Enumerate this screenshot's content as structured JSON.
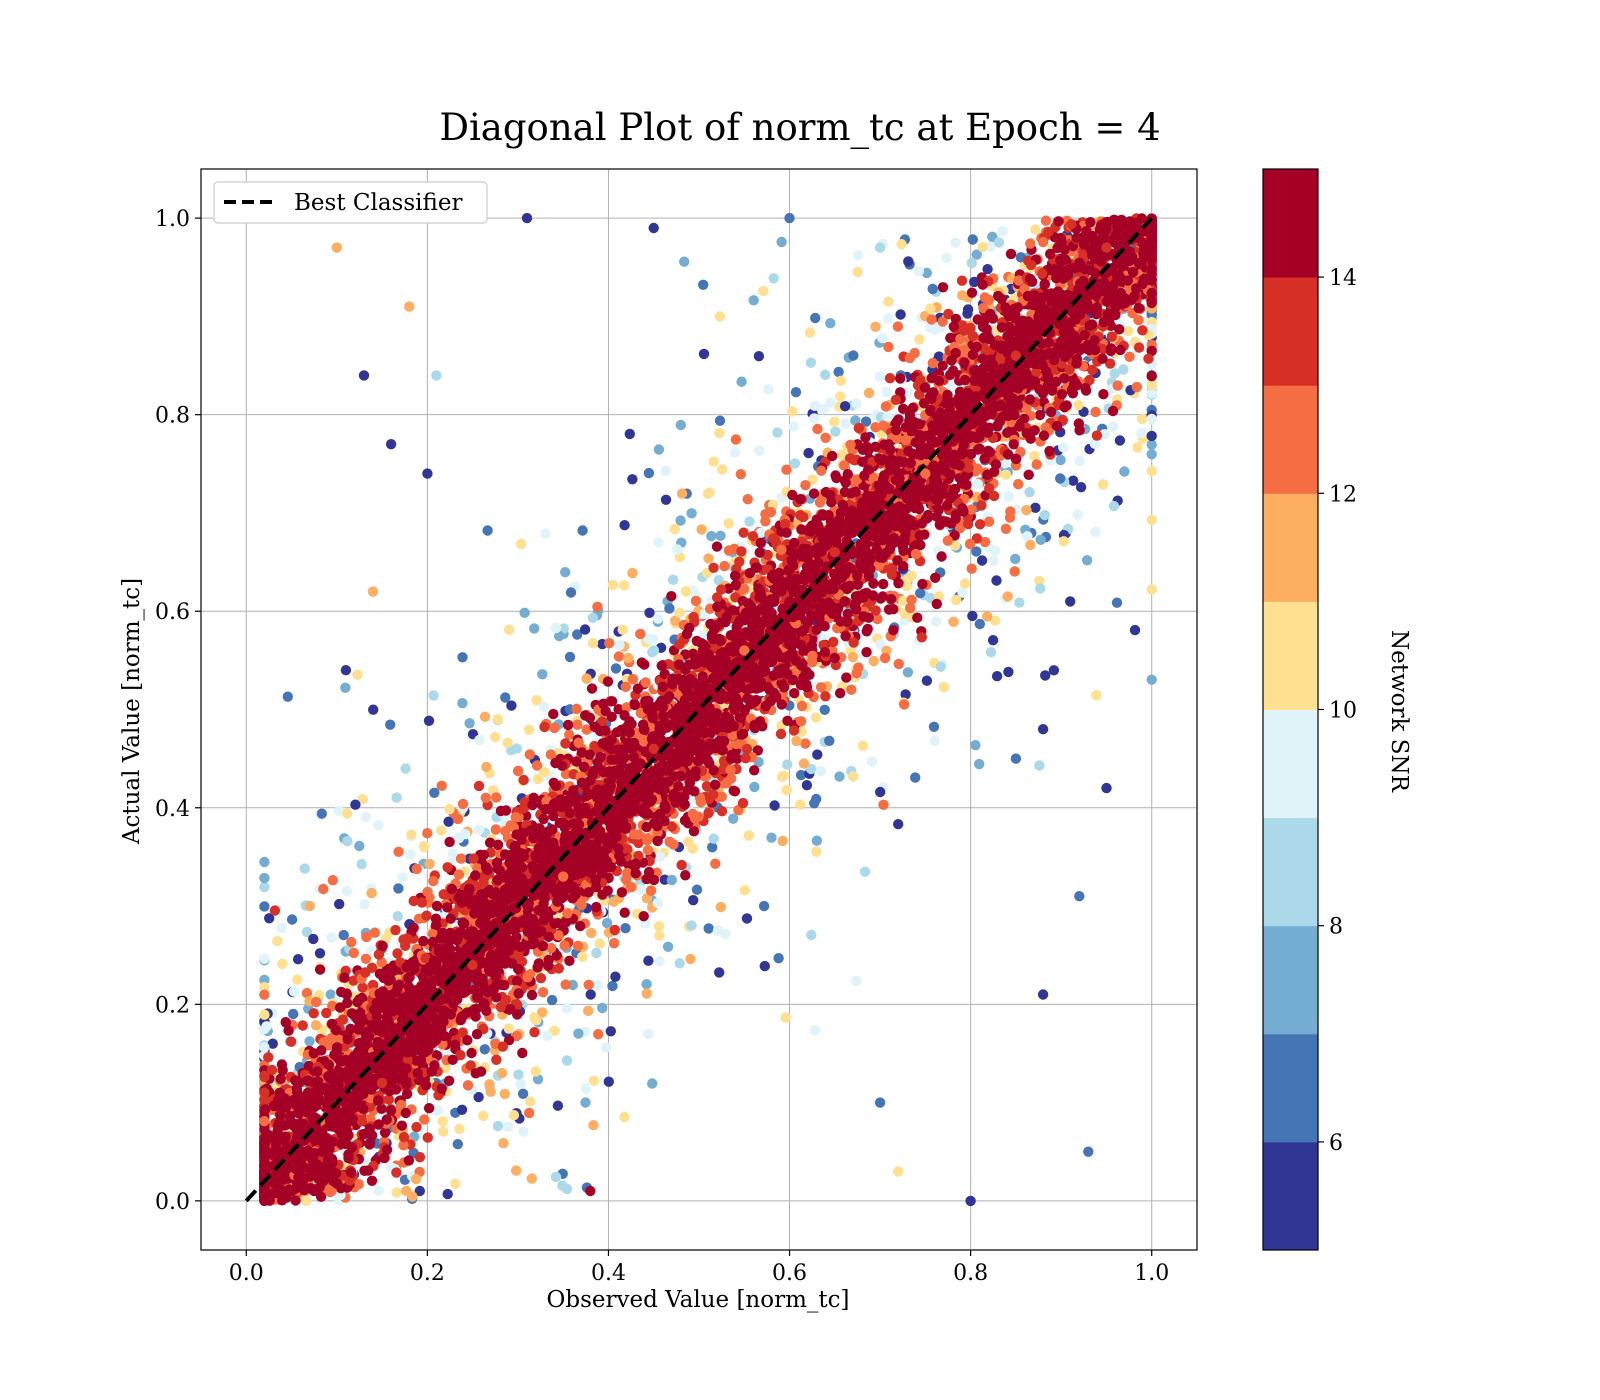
{
  "chart_data": {
    "type": "scatter",
    "title": "Diagonal Plot of norm_tc at Epoch = 4",
    "xlabel": "Observed Value [norm_tc]",
    "ylabel": "Actual Value [norm_tc]",
    "xlim": [
      -0.05,
      1.05
    ],
    "ylim": [
      -0.05,
      1.05
    ],
    "x_ticks": [
      "0.0",
      "0.2",
      "0.4",
      "0.6",
      "0.8",
      "1.0"
    ],
    "y_ticks": [
      "0.0",
      "0.2",
      "0.4",
      "0.6",
      "0.8",
      "1.0"
    ],
    "grid": true,
    "legend": {
      "placement": "upper-left",
      "entries": [
        "Best Classifier"
      ]
    },
    "reference_line": {
      "name": "Best Classifier",
      "x": [
        0,
        1
      ],
      "y": [
        0,
        1
      ],
      "style": "dashed",
      "color": "#000000"
    },
    "colorbar": {
      "label": "Network SNR",
      "range": [
        5,
        15
      ],
      "ticks": [
        "6",
        "8",
        "10",
        "12",
        "14"
      ],
      "bins": 10,
      "colors": [
        "#313695",
        "#4575b4",
        "#74add1",
        "#abd9e9",
        "#e0f3f8",
        "#fee090",
        "#fdae61",
        "#f46d43",
        "#d73027",
        "#a50026"
      ]
    },
    "points_description_note": "",
    "sample_points": [
      [
        0.05,
        0.01,
        14.5
      ],
      [
        0.1,
        0.08,
        14.2
      ],
      [
        0.15,
        0.12,
        13.8
      ],
      [
        0.2,
        0.19,
        14.6
      ],
      [
        0.25,
        0.24,
        13.2
      ],
      [
        0.3,
        0.31,
        14.8
      ],
      [
        0.35,
        0.33,
        12.5
      ],
      [
        0.4,
        0.41,
        14.1
      ],
      [
        0.45,
        0.46,
        13.9
      ],
      [
        0.5,
        0.49,
        14.7
      ],
      [
        0.55,
        0.56,
        12.9
      ],
      [
        0.6,
        0.6,
        14.3
      ],
      [
        0.65,
        0.66,
        13.6
      ],
      [
        0.7,
        0.71,
        14.9
      ],
      [
        0.75,
        0.74,
        12.2
      ],
      [
        0.8,
        0.81,
        14.4
      ],
      [
        0.85,
        0.86,
        13.1
      ],
      [
        0.9,
        0.91,
        14.6
      ],
      [
        0.95,
        0.97,
        13.7
      ],
      [
        0.13,
        0.84,
        5.5
      ],
      [
        0.1,
        0.97,
        11.5
      ],
      [
        0.18,
        0.91,
        11.7
      ],
      [
        0.21,
        0.84,
        8.5
      ],
      [
        0.16,
        0.77,
        5.6
      ],
      [
        0.2,
        0.74,
        5.5
      ],
      [
        0.14,
        0.62,
        11.3
      ],
      [
        0.11,
        0.54,
        5.6
      ],
      [
        0.93,
        0.05,
        6.5
      ],
      [
        0.88,
        0.21,
        5.6
      ],
      [
        0.92,
        0.31,
        6.2
      ],
      [
        0.95,
        0.42,
        5.5
      ],
      [
        0.8,
        0.0,
        5.8
      ],
      [
        0.7,
        0.1,
        6.8
      ],
      [
        0.38,
        0.01,
        14.8
      ],
      [
        0.72,
        0.03,
        10.5
      ],
      [
        0.45,
        0.99,
        5.7
      ],
      [
        0.6,
        1.0,
        6.2
      ],
      [
        0.7,
        0.97,
        8.9
      ],
      [
        0.31,
        1.0,
        5.5
      ],
      [
        0.91,
        0.61,
        5.4
      ],
      [
        0.88,
        0.48,
        5.6
      ],
      [
        0.85,
        0.45,
        6.9
      ],
      [
        0.07,
        0.3,
        11.8
      ]
    ]
  }
}
